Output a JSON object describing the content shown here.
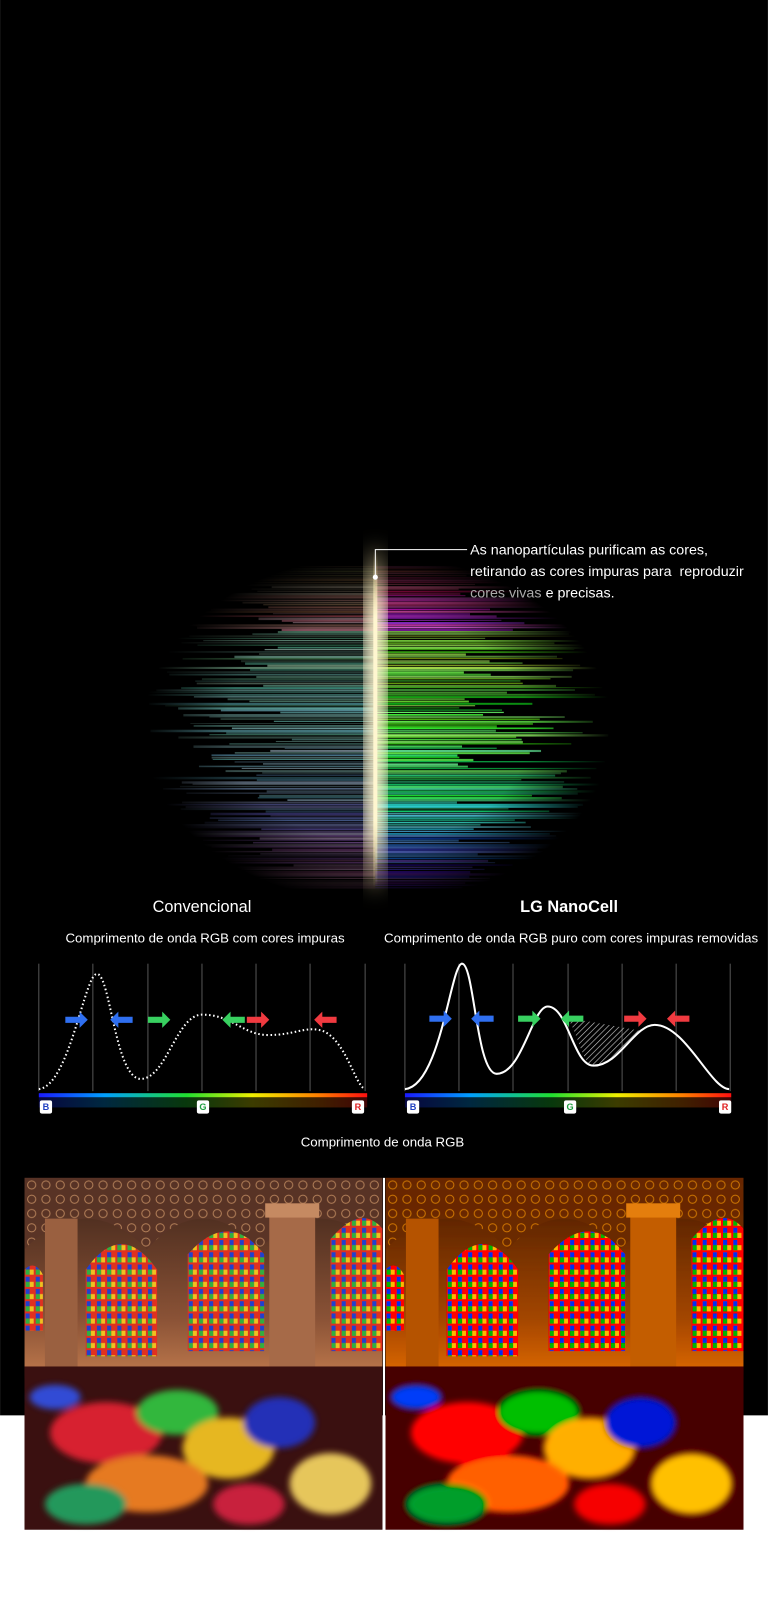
{
  "annotation": {
    "lines": [
      "As nanopartículas purificam as cores,",
      "retirando as cores impuras para  reproduzir"
    ],
    "highlight": "cores vivas",
    "rest": "e precisas."
  },
  "panels": [
    {
      "title": "Convencional",
      "subtitle": "Comprimento de onda RGB com cores impuras",
      "axis_labels": [
        "B",
        "G",
        "R"
      ]
    },
    {
      "title": "LG NanoCell",
      "subtitle": "Comprimento de onda RGB puro com cores impuras removidas",
      "axis_labels": [
        "B",
        "G",
        "R"
      ]
    }
  ],
  "caption": "Comprimento de onda RGB"
}
